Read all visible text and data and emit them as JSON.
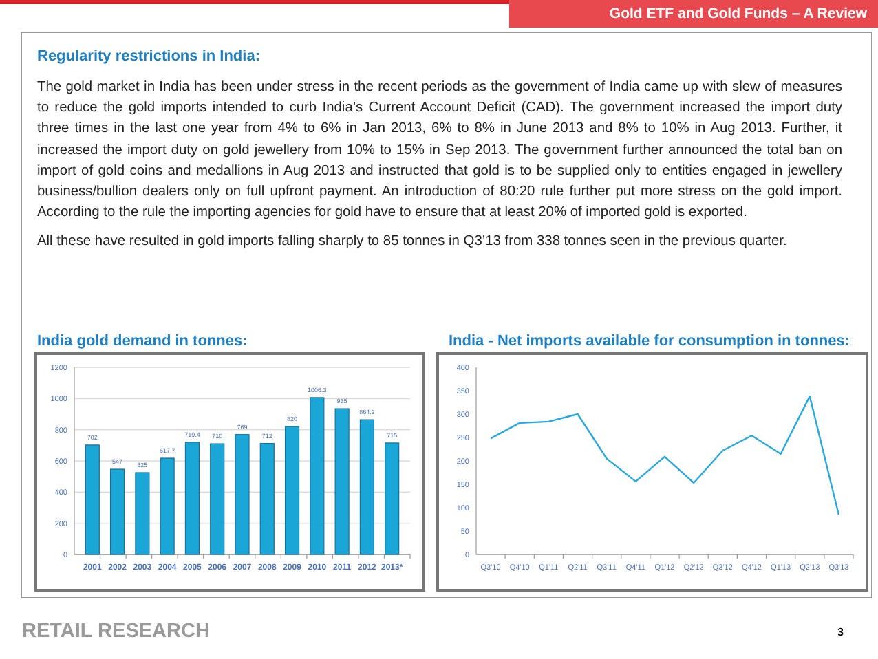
{
  "chart_data": [
    {
      "type": "other",
      "title": "Gold ETF and Gold Funds – A Review",
      "subtitle": "Regularity restrictions in India:",
      "annotations": [
        "The gold market in India has been under stress in the recent periods as the government of India came up with slew of measures to reduce the gold imports intended to curb India’s Current Account Deficit (CAD). The government increased the import duty three times in the last one year from 4% to 6% in Jan 2013, 6% to 8% in June 2013 and 8% to 10% in Aug 2013. Further, it increased the import duty on gold jewellery from 10% to 15% in Sep 2013. The government further announced the total ban on import of gold coins and medallions in Aug 2013 and instructed that gold is to be supplied only to entities engaged in jewellery business/bullion dealers only on full upfront payment. An introduction of 80:20 rule further put more stress on the gold import. According to the rule the importing agencies for gold have to ensure that at least 20% of imported gold is exported.",
        "All these have resulted in gold imports falling sharply to 85 tonnes in Q3’13 from 338 tonnes seen in the previous quarter.",
        "RETAIL RESEARCH",
        "3"
      ]
    },
    {
      "type": "bar",
      "title": "India gold demand in tonnes:",
      "categories": [
        "2001",
        "2002",
        "2003",
        "2004",
        "2005",
        "2006",
        "2007",
        "2008",
        "2009",
        "2010",
        "2011",
        "2012",
        "2013*"
      ],
      "values": [
        702,
        547,
        525,
        617.7,
        719.4,
        710,
        769,
        712,
        820,
        1006.3,
        935,
        864.2,
        715
      ],
      "color": "#1ba6d8",
      "ylim": [
        0,
        1200
      ],
      "yticks": [
        0,
        200,
        400,
        600,
        800,
        1000,
        1200
      ],
      "grid": "y",
      "data_labels": true
    },
    {
      "type": "line",
      "title": "India - Net imports available for consumption in tonnes:",
      "categories": [
        "Q3'10",
        "Q4'10",
        "Q1'11",
        "Q2'11",
        "Q3'11",
        "Q4'11",
        "Q1'12",
        "Q2'12",
        "Q3'12",
        "Q4'12",
        "Q1'13",
        "Q2'13",
        "Q3'13"
      ],
      "values": [
        248,
        281,
        284,
        300,
        205,
        156,
        209,
        153,
        222,
        254,
        215,
        338,
        85
      ],
      "color": "#2aa8dc",
      "ylim": [
        0,
        400
      ],
      "yticks": [
        0,
        50,
        100,
        150,
        200,
        250,
        300,
        350,
        400
      ],
      "grid": false,
      "marker": "none",
      "line_style": "solid"
    }
  ]
}
